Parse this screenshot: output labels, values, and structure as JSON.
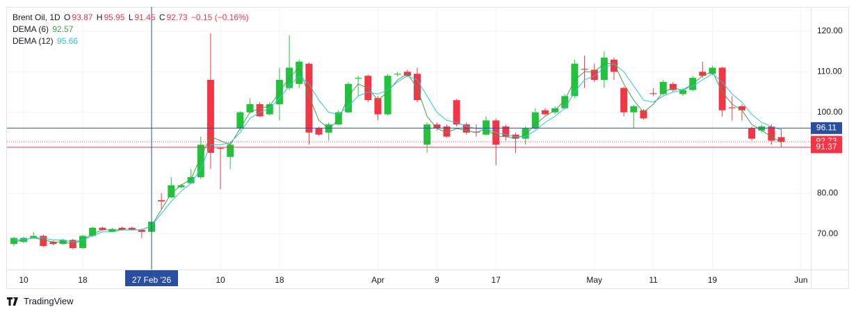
{
  "chart_data": {
    "type": "candlestick",
    "title": "Brent Oil, 1D",
    "ohlc_labels": [
      "O",
      "H",
      "L",
      "C"
    ],
    "change": "−0.15 (−0.16%)",
    "up_color": "#22c33a",
    "down_color": "#f23645",
    "candles": {
      "x": [
        0,
        1,
        2,
        3,
        4,
        5,
        6,
        7,
        8,
        9,
        10,
        11,
        12,
        13,
        14,
        15,
        16,
        17,
        18,
        19,
        20,
        21,
        22,
        23,
        24,
        25,
        26,
        27,
        28,
        29,
        30,
        31,
        32,
        33,
        34,
        35,
        36,
        37,
        38,
        39,
        40,
        41,
        42,
        43,
        44,
        45,
        46,
        47,
        48,
        49,
        50,
        51,
        52,
        53,
        54,
        55,
        56,
        57,
        58,
        59,
        60,
        61,
        62,
        63,
        64,
        65,
        66,
        67,
        68,
        69,
        70,
        71,
        72,
        73,
        74,
        75,
        76,
        77,
        78
      ],
      "open": [
        67.5,
        68,
        69,
        69.5,
        68,
        67.5,
        68.5,
        66.5,
        69.5,
        71.5,
        70.5,
        71.5,
        71.5,
        71,
        70.5,
        78.3,
        79,
        81.5,
        82.5,
        84,
        108,
        91.2,
        89,
        96,
        100,
        102,
        99.5,
        102,
        106,
        107,
        112,
        96,
        95,
        97,
        100,
        108.3,
        109,
        103.5,
        99.5,
        109.3,
        110,
        109.5,
        92,
        97,
        96.5,
        103,
        97,
        95.2,
        94.5,
        98,
        96.5,
        94.5,
        93.5,
        96,
        100.5,
        100,
        101,
        104,
        110.7,
        110.5,
        108,
        113,
        106,
        100,
        100.5,
        104.7,
        104.5,
        107,
        104.5,
        105.5,
        110,
        109.5,
        111,
        101.2,
        101.5,
        96,
        95.5,
        96.5,
        93.87
      ],
      "high": [
        69.3,
        69.3,
        70.5,
        69.8,
        68.3,
        68.8,
        68.8,
        69.8,
        71.8,
        71.8,
        71.5,
        71.8,
        71.8,
        71.3,
        73.5,
        80,
        84,
        82.3,
        86,
        94,
        119.5,
        91.5,
        92.5,
        100.3,
        103.5,
        102.5,
        102.5,
        111,
        119,
        113,
        112.3,
        96.5,
        97.5,
        100.5,
        107.5,
        109,
        109.3,
        104,
        109.5,
        110,
        110.5,
        111,
        97.5,
        97.5,
        97,
        103.3,
        97.5,
        97,
        99,
        98.5,
        97,
        95,
        96.5,
        101,
        101,
        101.5,
        104.5,
        113,
        114,
        112,
        115,
        113.5,
        106.3,
        101.8,
        100.8,
        106,
        108,
        107.5,
        106,
        109,
        112.5,
        111.5,
        111.3,
        104,
        102,
        96.5,
        97,
        97,
        95.95
      ],
      "low": [
        67,
        67.8,
        68.8,
        66.8,
        67.2,
        67.3,
        66.2,
        66.3,
        69.3,
        70.8,
        70.3,
        70.8,
        70.8,
        69,
        70.3,
        76,
        78.8,
        81.2,
        82.3,
        83.5,
        86,
        81,
        86,
        95.5,
        99.8,
        98.8,
        99.2,
        98,
        105.5,
        106,
        92,
        94.2,
        93,
        96.8,
        99.8,
        104,
        102.5,
        98,
        99.2,
        108.8,
        108.7,
        102.5,
        90,
        95.5,
        93.8,
        96.5,
        94.5,
        94,
        94.2,
        87,
        93,
        90,
        92,
        95.8,
        99.2,
        99.5,
        100.8,
        103.5,
        106,
        107.5,
        106,
        108,
        99,
        96,
        98.2,
        104,
        104.2,
        105,
        104,
        105.2,
        108.5,
        109.2,
        99,
        98,
        98,
        93,
        95,
        92,
        91.45
      ],
      "close": [
        69,
        69,
        69.5,
        67,
        67.5,
        68.5,
        66.5,
        69.5,
        71.5,
        71,
        71.2,
        71,
        71,
        70.5,
        73,
        78,
        82,
        82,
        84,
        92,
        90,
        91,
        92,
        100,
        102,
        99,
        102,
        108,
        111,
        112.5,
        95,
        94.5,
        97,
        100,
        107,
        108.5,
        103,
        99.5,
        109,
        109.5,
        109,
        103,
        97,
        96,
        94,
        97,
        95,
        95,
        98,
        92,
        94,
        93.5,
        96,
        100,
        99.5,
        101,
        104,
        112,
        110.5,
        108,
        113.5,
        110,
        100,
        101.5,
        98.5,
        104.5,
        107.5,
        105.5,
        105.5,
        108.5,
        109,
        111,
        100.5,
        101,
        100.5,
        93.5,
        96.5,
        93,
        92.73
      ]
    },
    "series": [
      {
        "name": "DEMA (6)",
        "color": "#43a047",
        "values": [
          68,
          68.5,
          69,
          68.5,
          68,
          68,
          67.5,
          68.5,
          70,
          71,
          71,
          71,
          71,
          71,
          72,
          76,
          80,
          82,
          83.5,
          89,
          94,
          93,
          92,
          96,
          100,
          101,
          101.5,
          105,
          108.5,
          111,
          104,
          98,
          96,
          98,
          104,
          107,
          106,
          103,
          105,
          108,
          109.5,
          106,
          99,
          96,
          95,
          96,
          95.5,
          95,
          96,
          94,
          94,
          93.5,
          94.5,
          97,
          99,
          100.5,
          103,
          108,
          110,
          110,
          112,
          112,
          107,
          103,
          100,
          102,
          105,
          106,
          105.5,
          107,
          109,
          110,
          105,
          102,
          100.5,
          97,
          95.5,
          94,
          92.57
        ]
      },
      {
        "name": "DEMA (12)",
        "color": "#26c6da",
        "values": [
          68.5,
          68.5,
          69,
          69,
          68.5,
          68.5,
          68,
          68.5,
          69.5,
          70.5,
          70.5,
          71,
          71,
          71,
          72,
          75,
          78,
          80.5,
          82.5,
          86,
          92,
          92,
          92.5,
          95,
          98.5,
          100,
          101,
          103.5,
          106.5,
          109,
          107,
          103,
          100,
          99.5,
          101.5,
          104,
          105,
          104.5,
          105.5,
          107.5,
          109,
          108,
          104,
          100,
          98,
          97.5,
          96.5,
          96,
          96,
          95,
          94.5,
          94,
          94,
          95.5,
          97.5,
          99,
          101,
          105,
          108,
          109,
          111,
          112,
          110,
          106.5,
          103,
          102.5,
          104,
          105,
          105.5,
          106.5,
          108,
          109.5,
          107.5,
          104.5,
          102.5,
          99.5,
          97.5,
          96.5,
          95.66
        ]
      }
    ],
    "level": 91.37,
    "crosshair": {
      "x": 14,
      "x_label": "27 Feb '26",
      "y": 96.11,
      "color": "#2a4f9e"
    },
    "xlim": [
      -0.7,
      81
    ],
    "ylim": [
      61.2,
      126
    ],
    "xticks": [
      {
        "value": 1,
        "label": "10"
      },
      {
        "value": 7,
        "label": "18"
      },
      {
        "value": 21,
        "label": "10"
      },
      {
        "value": 27,
        "label": "18"
      },
      {
        "value": 37,
        "label": "Apr"
      },
      {
        "value": 43,
        "label": "9"
      },
      {
        "value": 49,
        "label": "17"
      },
      {
        "value": 59,
        "label": "May"
      },
      {
        "value": 65,
        "label": "11"
      },
      {
        "value": 71,
        "label": "19"
      },
      {
        "value": 80,
        "label": "Jun"
      }
    ],
    "yticks": [
      {
        "value": 70,
        "label": "70.00"
      },
      {
        "value": 80,
        "label": "80.00"
      },
      {
        "value": 100,
        "label": "100.00"
      },
      {
        "value": 110,
        "label": "110.00"
      },
      {
        "value": 120,
        "label": "120.00"
      }
    ],
    "grid": true
  },
  "footer": {
    "logo": "TradingView"
  }
}
